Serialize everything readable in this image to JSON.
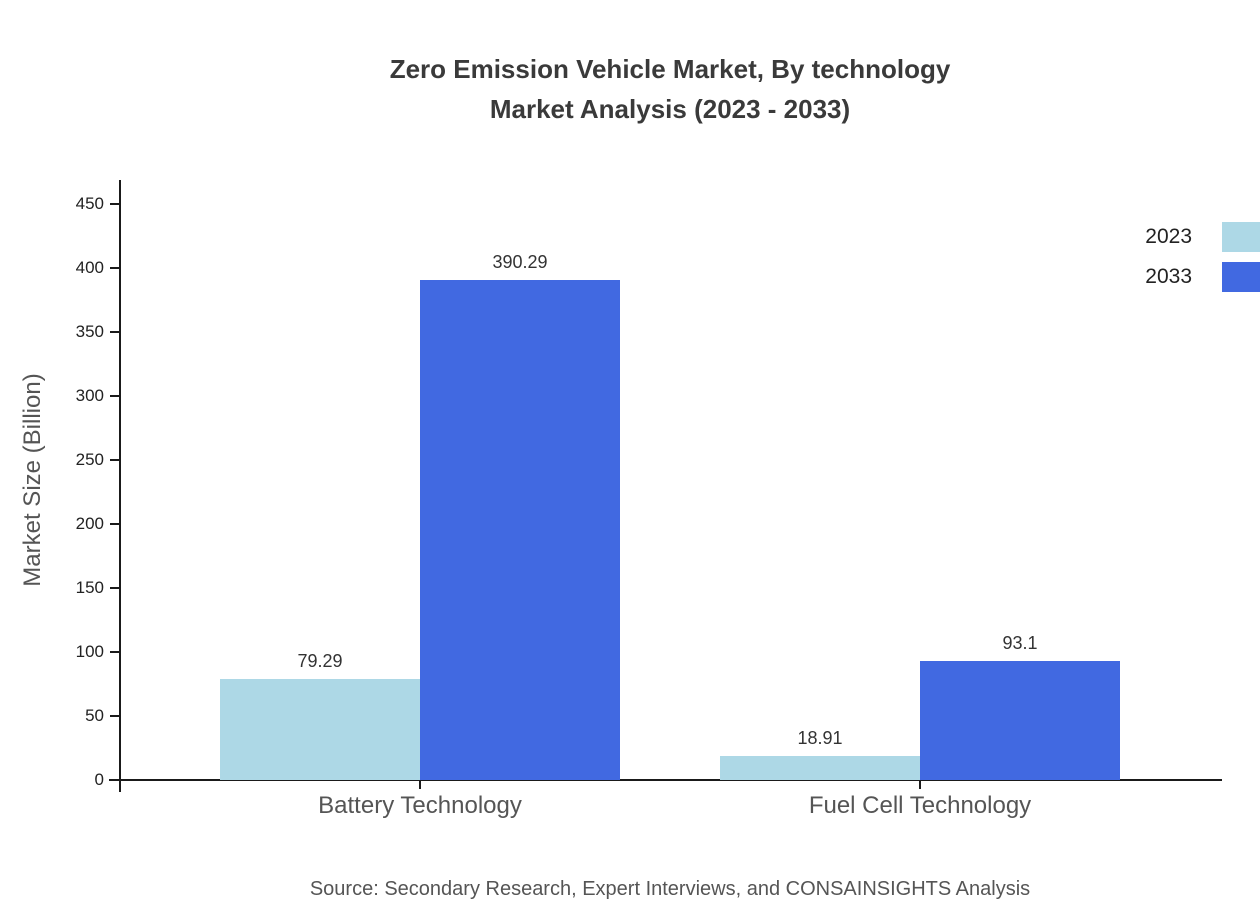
{
  "page": {
    "background": "#ffffff"
  },
  "source": "Source: Secondary Research, Expert Interviews, and CONSAINSIGHTS Analysis",
  "chart_data": {
    "type": "bar",
    "title": "Zero Emission Vehicle Market, By technology",
    "subtitle": "Market Analysis (2023 - 2033)",
    "categories": [
      "Battery Technology",
      "Fuel Cell Technology"
    ],
    "series": [
      {
        "name": "2023",
        "color": "#add8e6",
        "values": [
          79.29,
          18.91
        ]
      },
      {
        "name": "2033",
        "color": "#4169e1",
        "values": [
          390.29,
          93.1
        ]
      }
    ],
    "xlabel": "",
    "ylabel": "Market Size (Billion)",
    "ylim": [
      0,
      450
    ],
    "yticks": [
      0,
      50,
      100,
      150,
      200,
      250,
      300,
      350,
      400,
      450
    ],
    "grid": false,
    "legend_position": "top-right"
  }
}
